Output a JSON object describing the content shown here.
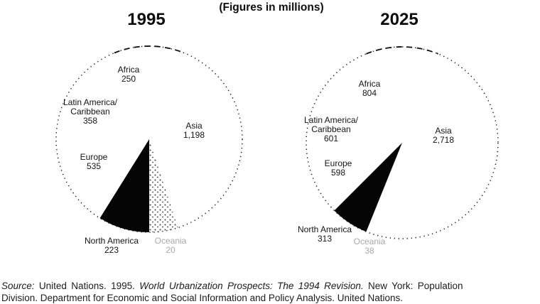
{
  "header": {
    "left_year": "1995",
    "caption": "(Figures in millions)",
    "right_year": "2025"
  },
  "charts": [
    {
      "year": "1995",
      "labels": [
        {
          "lines": [
            "Africa",
            "250"
          ]
        },
        {
          "lines": [
            "Latin America/",
            "Caribbean",
            "358"
          ]
        },
        {
          "lines": [
            "Asia",
            "1,198"
          ]
        },
        {
          "lines": [
            "Europe",
            "535"
          ]
        },
        {
          "lines": [
            "North America",
            "223"
          ]
        },
        {
          "lines": [
            "Oceania",
            "20"
          ],
          "faint": true
        }
      ],
      "wedges": [
        {
          "start": 180,
          "end": 212,
          "fill": "black"
        },
        {
          "start": 162,
          "end": 180,
          "fill": "dots"
        }
      ]
    },
    {
      "year": "2025",
      "labels": [
        {
          "lines": [
            "Africa",
            "804"
          ]
        },
        {
          "lines": [
            "Latin America/",
            "Caribbean",
            "601"
          ]
        },
        {
          "lines": [
            "Asia",
            "2,718"
          ]
        },
        {
          "lines": [
            "Europe",
            "598"
          ]
        },
        {
          "lines": [
            "North America",
            "313"
          ]
        },
        {
          "lines": [
            "Oceania",
            "38"
          ],
          "faint": true
        }
      ],
      "wedges": [
        {
          "start": 202,
          "end": 225,
          "fill": "black"
        }
      ]
    }
  ],
  "chart_data": [
    {
      "type": "pie",
      "title": "1995",
      "subtitle": "(Figures in millions)",
      "unit": "millions of urban population",
      "categories": [
        "Africa",
        "Latin America/Caribbean",
        "Asia",
        "Europe",
        "North America",
        "Oceania"
      ],
      "values": [
        250,
        358,
        1198,
        535,
        223,
        20
      ],
      "legend_position": "none",
      "style_notes": "dotted circle outline; North America wedge solid black; adjacent stippled wedge; Oceania label printed faint"
    },
    {
      "type": "pie",
      "title": "2025",
      "subtitle": "(Figures in millions)",
      "unit": "millions of urban population",
      "categories": [
        "Africa",
        "Latin America/Caribbean",
        "Asia",
        "Europe",
        "North America",
        "Oceania"
      ],
      "values": [
        804,
        601,
        2718,
        598,
        313,
        38
      ],
      "legend_position": "none",
      "style_notes": "dotted circle outline; North America wedge solid black; Oceania label printed faint"
    }
  ],
  "source": {
    "seg1": "Source:",
    "seg2": " United Nations. 1995. ",
    "seg3": "World Urbanization Prospects: The 1994 Revision.",
    "seg4": " New York: Population",
    "seg5": "Division. Department for Economic and Social Information and Policy Analysis. United Nations."
  },
  "colors": {
    "ink": "#111111",
    "wedge_black": "#050505",
    "stipple_dot": "#3a3a3a",
    "faint_text": "#a9a9a9",
    "background": "#ffffff"
  }
}
